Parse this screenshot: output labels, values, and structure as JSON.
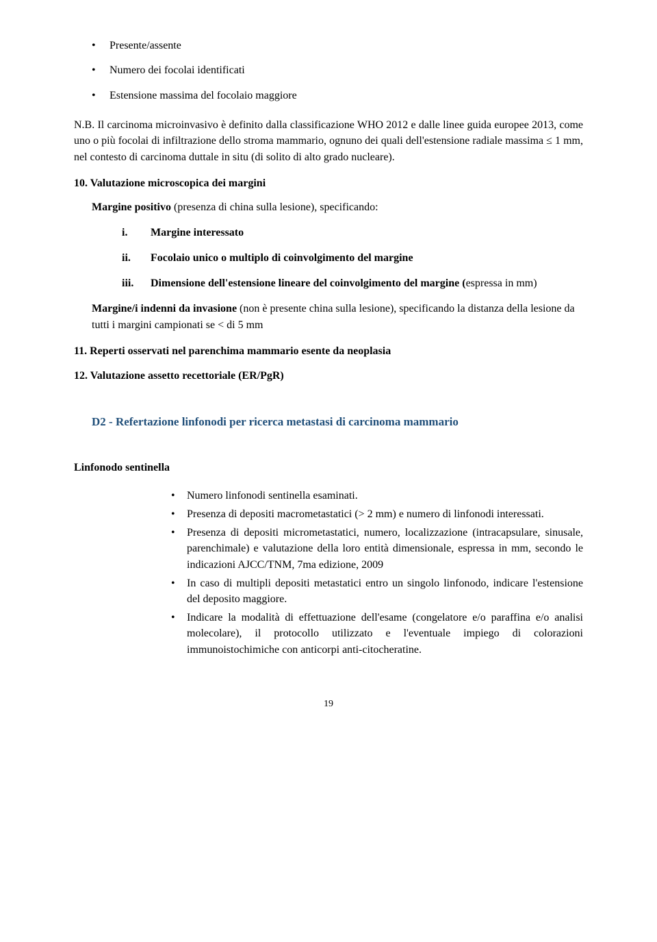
{
  "top_bullets": [
    "Presente/assente",
    "Numero dei focolai identificati",
    "Estensione massima del focolaio maggiore"
  ],
  "nb_para": "N.B. Il carcinoma microinvasivo è definito dalla classificazione WHO 2012 e dalle linee guida europee 2013,  come uno o più focolai di infiltrazione dello stroma mammario, ognuno dei quali dell'estensione radiale massima ≤ 1 mm, nel contesto di carcinoma duttale in situ (di solito di alto grado nucleare).",
  "sec10_title": "10. Valutazione microscopica dei margini",
  "sec10_intro_bold": "Margine positivo",
  "sec10_intro_rest": " (presenza di china sulla lesione),  specificando:",
  "roman_items": [
    {
      "num": "i.",
      "bold": "Margine interessato",
      "rest": ""
    },
    {
      "num": "ii.",
      "bold": "Focolaio  unico o multiplo di coinvolgimento del margine",
      "rest": ""
    },
    {
      "num": "iii.",
      "bold": "Dimensione dell'estensione lineare del coinvolgimento del margine (",
      "rest": "espressa in mm)"
    }
  ],
  "margine_bold": "Margine/i indenni da invasione",
  "margine_rest": " (non è presente china sulla lesione), specificando la distanza della lesione da tutti i margini campionati se < di 5 mm",
  "sec11": "11. Reperti osservati nel parenchima mammario esente da neoplasia",
  "sec12": "12. Valutazione assetto recettoriale (ER/PgR)",
  "d2_heading": "D2 - Refertazione linfonodi per ricerca metastasi di carcinoma mammario",
  "linfo_heading": "Linfonodo sentinella",
  "linfo_bullets": [
    "Numero linfonodi sentinella esaminati.",
    "Presenza di depositi macrometastatici (> 2 mm) e numero di linfonodi interessati.",
    "Presenza di depositi micrometastatici, numero, localizzazione (intracapsulare, sinusale, parenchimale) e valutazione della loro entità dimensionale, espressa in mm, secondo le indicazioni AJCC/TNM, 7ma edizione, 2009",
    "In caso di multipli depositi metastatici entro un singolo linfonodo, indicare l'estensione del deposito maggiore.",
    "Indicare la modalità di effettuazione dell'esame (congelatore e/o paraffina e/o analisi molecolare), il protocollo utilizzato e l'eventuale impiego di colorazioni immunoistochimiche con anticorpi anti-citocheratine."
  ],
  "page_number": "19"
}
